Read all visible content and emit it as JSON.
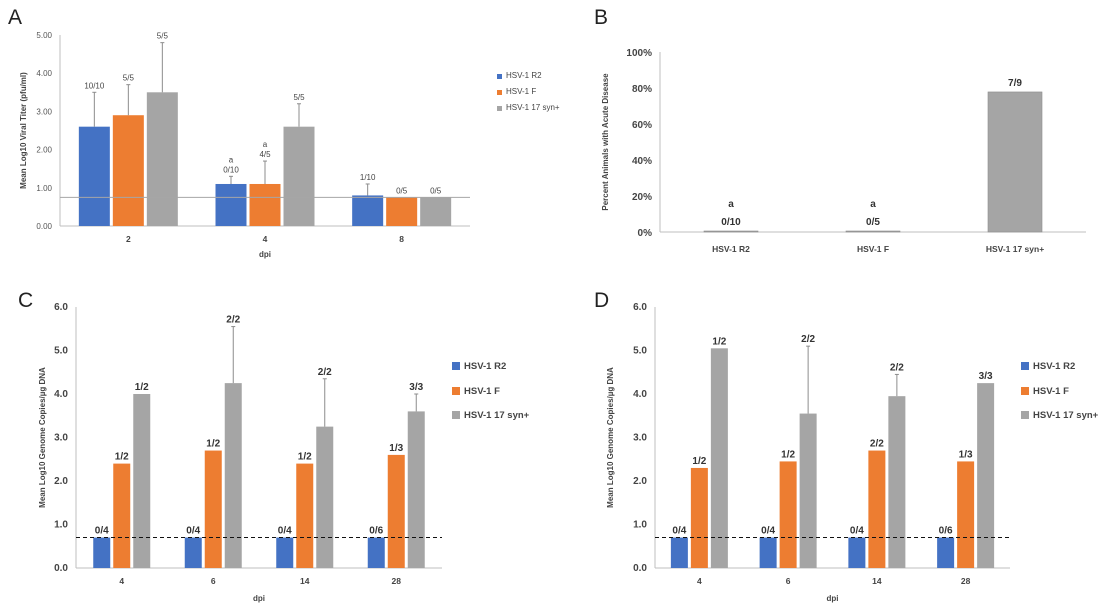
{
  "chart_data": [
    {
      "panel": "A",
      "type": "bar",
      "title": "",
      "xlabel": "dpi",
      "ylabel": "Mean Log10 Viral Titer (pfu/ml)",
      "ylim": [
        0,
        5
      ],
      "yticks": [
        0,
        1,
        2,
        3,
        4,
        5
      ],
      "yticklabels": [
        "0.00",
        "1.00",
        "2.00",
        "3.00",
        "4.00",
        "5.00"
      ],
      "categories": [
        "2",
        "4",
        "8"
      ],
      "series": [
        {
          "name": "HSV-1 R2",
          "color": "#4472c4",
          "values": [
            2.6,
            1.1,
            0.8
          ],
          "errors": [
            0.9,
            0.2,
            0.3
          ],
          "labels": [
            "10/10",
            "0/10",
            "1/10"
          ],
          "marks": [
            "",
            "a",
            ""
          ]
        },
        {
          "name": "HSV-1 F",
          "color": "#ed7d31",
          "values": [
            2.9,
            1.1,
            0.75
          ],
          "errors": [
            0.8,
            0.6,
            0
          ],
          "labels": [
            "5/5",
            "4/5",
            "0/5"
          ],
          "marks": [
            "",
            "a",
            ""
          ]
        },
        {
          "name": "HSV-1 17 syn+",
          "color": "#a5a5a5",
          "values": [
            3.5,
            2.6,
            0.75
          ],
          "errors": [
            1.3,
            0.6,
            0
          ],
          "labels": [
            "5/5",
            "5/5",
            "0/5"
          ],
          "marks": [
            "",
            "",
            ""
          ]
        }
      ],
      "hline": 0.75,
      "legend": "right"
    },
    {
      "panel": "B",
      "type": "bar",
      "title": "",
      "xlabel": "",
      "ylabel": "Percent Animals with Acute Disease",
      "ylim": [
        0,
        100
      ],
      "yticks": [
        0,
        20,
        40,
        60,
        80,
        100
      ],
      "yticklabels": [
        "0%",
        "20%",
        "40%",
        "60%",
        "80%",
        "100%"
      ],
      "categories": [
        "HSV-1 R2",
        "HSV-1 F",
        "HSV-1 17 syn+"
      ],
      "values": [
        0,
        0,
        77.8
      ],
      "labels": [
        "0/10",
        "0/5",
        "7/9"
      ],
      "marks": [
        "a",
        "a",
        ""
      ],
      "color": "#a5a5a5"
    },
    {
      "panel": "C",
      "type": "bar",
      "title": "",
      "xlabel": "dpi",
      "ylabel": "Mean Log10 Genome Copies/µg DNA",
      "ylim": [
        0,
        6
      ],
      "yticks": [
        0,
        1,
        2,
        3,
        4,
        5,
        6
      ],
      "yticklabels": [
        "0.0",
        "1.0",
        "2.0",
        "3.0",
        "4.0",
        "5.0",
        "6.0"
      ],
      "categories": [
        "4",
        "6",
        "14",
        "28"
      ],
      "series": [
        {
          "name": "HSV-1 R2",
          "color": "#4472c4",
          "values": [
            0.7,
            0.7,
            0.7,
            0.7
          ],
          "errors": [
            0,
            0,
            0,
            0
          ],
          "labels": [
            "0/4",
            "0/4",
            "0/4",
            "0/6"
          ]
        },
        {
          "name": "HSV-1 F",
          "color": "#ed7d31",
          "values": [
            2.4,
            2.7,
            2.4,
            2.6
          ],
          "errors": [
            0,
            0,
            0,
            0
          ],
          "labels": [
            "1/2",
            "1/2",
            "1/2",
            "1/3"
          ]
        },
        {
          "name": "HSV-1 17 syn+",
          "color": "#a5a5a5",
          "values": [
            4.0,
            4.25,
            3.25,
            3.6
          ],
          "errors": [
            0,
            1.3,
            1.1,
            0.4
          ],
          "labels": [
            "1/2",
            "2/2",
            "2/2",
            "3/3"
          ]
        }
      ],
      "hline": 0.7,
      "legend": "right"
    },
    {
      "panel": "D",
      "type": "bar",
      "title": "",
      "xlabel": "dpi",
      "ylabel": "Mean Log10 Genome Copies/µg DNA",
      "ylim": [
        0,
        6
      ],
      "yticks": [
        0,
        1,
        2,
        3,
        4,
        5,
        6
      ],
      "yticklabels": [
        "0.0",
        "1.0",
        "2.0",
        "3.0",
        "4.0",
        "5.0",
        "6.0"
      ],
      "categories": [
        "4",
        "6",
        "14",
        "28"
      ],
      "series": [
        {
          "name": "HSV-1 R2",
          "color": "#4472c4",
          "values": [
            0.7,
            0.7,
            0.7,
            0.7
          ],
          "errors": [
            0,
            0,
            0,
            0
          ],
          "labels": [
            "0/4",
            "0/4",
            "0/4",
            "0/6"
          ]
        },
        {
          "name": "HSV-1 F",
          "color": "#ed7d31",
          "values": [
            2.3,
            2.45,
            2.7,
            2.45
          ],
          "errors": [
            0,
            0,
            0,
            0
          ],
          "labels": [
            "1/2",
            "1/2",
            "2/2",
            "1/3"
          ]
        },
        {
          "name": "HSV-1 17 syn+",
          "color": "#a5a5a5",
          "values": [
            5.05,
            3.55,
            3.95,
            4.25
          ],
          "errors": [
            0,
            1.55,
            0.5,
            0
          ],
          "labels": [
            "1/2",
            "2/2",
            "2/2",
            "3/3"
          ]
        }
      ],
      "hline": 0.7,
      "legend": "right"
    }
  ]
}
